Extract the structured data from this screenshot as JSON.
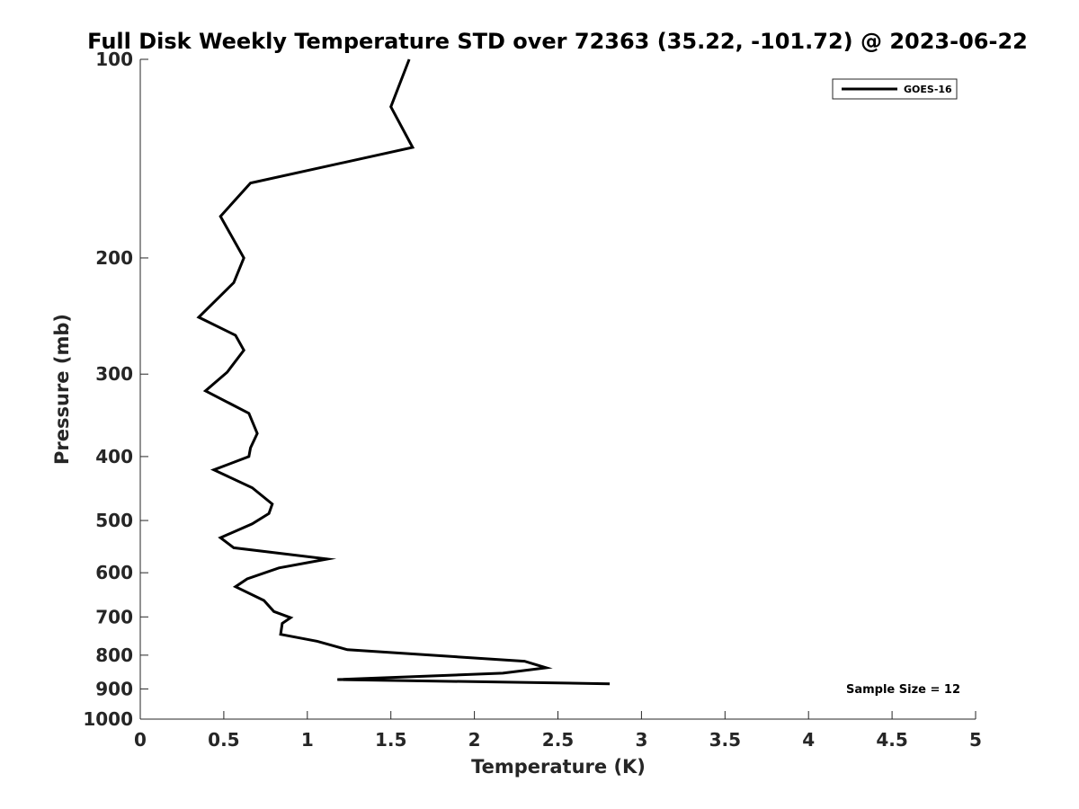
{
  "chart_data": {
    "type": "line",
    "title": "Full Disk Weekly Temperature STD over 72363 (35.22, -101.72) @ 2023-06-22",
    "xlabel": "Temperature (K)",
    "ylabel": "Pressure (mb)",
    "xlim": [
      0,
      5
    ],
    "ylim": [
      100,
      1000
    ],
    "y_scale": "log",
    "y_reversed": true,
    "x_ticks": [
      0,
      0.5,
      1,
      1.5,
      2,
      2.5,
      3,
      3.5,
      4,
      4.5,
      5
    ],
    "x_tick_labels": [
      "0",
      "0.5",
      "1",
      "1.5",
      "2",
      "2.5",
      "3",
      "3.5",
      "4",
      "4.5",
      "5"
    ],
    "y_ticks": [
      100,
      200,
      300,
      400,
      500,
      600,
      700,
      800,
      900,
      1000
    ],
    "y_tick_labels": [
      "100",
      "200",
      "300",
      "400",
      "500",
      "600",
      "700",
      "800",
      "900",
      "1000"
    ],
    "grid": false,
    "legend_position": "top-right",
    "series": [
      {
        "name": "GOES-16",
        "color": "#000000",
        "x": [
          1.61,
          1.5,
          1.63,
          0.66,
          0.48,
          0.62,
          0.56,
          0.35,
          0.57,
          0.62,
          0.52,
          0.39,
          0.65,
          0.7,
          0.66,
          0.65,
          0.44,
          0.67,
          0.79,
          0.77,
          0.67,
          0.48,
          0.56,
          1.12,
          0.83,
          0.64,
          0.57,
          0.74,
          0.8,
          0.9,
          0.85,
          0.84,
          1.06,
          1.24,
          2.3,
          2.43,
          2.17,
          1.18,
          2.81
        ],
        "y": [
          100,
          118,
          136,
          154,
          173,
          200,
          218,
          246,
          262,
          276,
          298,
          318,
          344,
          369,
          388,
          400,
          419,
          446,
          472,
          488,
          506,
          531,
          550,
          572,
          590,
          613,
          630,
          661,
          687,
          702,
          716,
          744,
          762,
          785,
          817,
          836,
          852,
          871,
          884
        ]
      }
    ],
    "annotations": [
      "Sample Size = 12"
    ]
  }
}
